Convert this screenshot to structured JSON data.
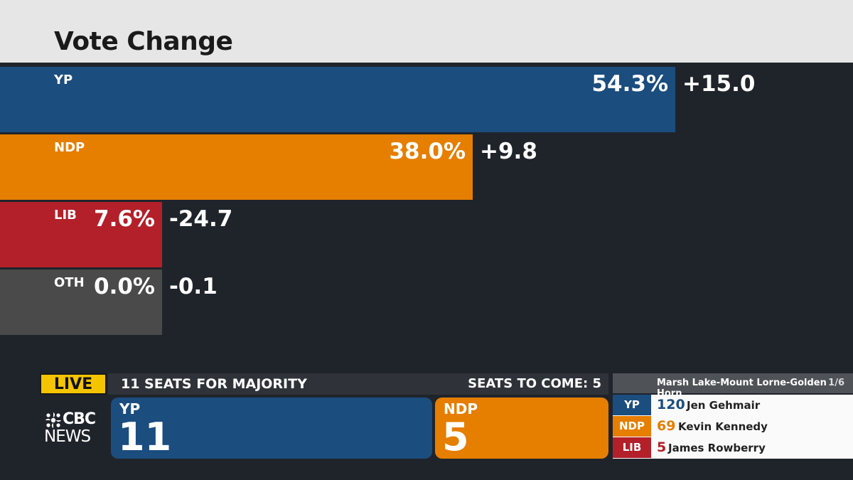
{
  "header": {
    "title": "Vote Change"
  },
  "chart_data": {
    "type": "bar",
    "orientation": "horizontal",
    "title": "Vote Change",
    "categories": [
      "YP",
      "NDP",
      "LIB",
      "OTH"
    ],
    "series": [
      {
        "values": [
          54.3,
          38.0,
          7.6,
          0.0
        ]
      }
    ],
    "value_labels": [
      "54.3%",
      "38.0%",
      "7.6%",
      "0.0%"
    ],
    "change_labels": [
      "+15.0",
      "+9.8",
      "-24.7",
      "-0.1"
    ],
    "change": [
      15.0,
      9.8,
      -24.7,
      -0.1
    ],
    "colors": [
      "#1b4d7e",
      "#e67e00",
      "#b3202a",
      "#4a4a4a"
    ]
  },
  "ticker": {
    "live": "LIVE",
    "majority": "11 SEATS FOR MAJORITY",
    "to_come": "SEATS TO COME: 5",
    "logo_top": "CBC",
    "logo_bottom": "NEWS",
    "seats": [
      {
        "party": "YP",
        "count": "11",
        "color": "#1b4d7e"
      },
      {
        "party": "NDP",
        "count": "5",
        "color": "#e67e00"
      }
    ]
  },
  "riding": {
    "name": "Marsh Lake-Mount Lorne-Golden Horn",
    "page": "1/6",
    "candidates": [
      {
        "party": "YP",
        "votes": "120",
        "name": "Jen Gehmair",
        "color": "#1b4d7e"
      },
      {
        "party": "NDP",
        "votes": "69",
        "name": "Kevin Kennedy",
        "color": "#e67e00"
      },
      {
        "party": "LIB",
        "votes": "5",
        "name": "James Rowberry",
        "color": "#b3202a"
      }
    ]
  }
}
